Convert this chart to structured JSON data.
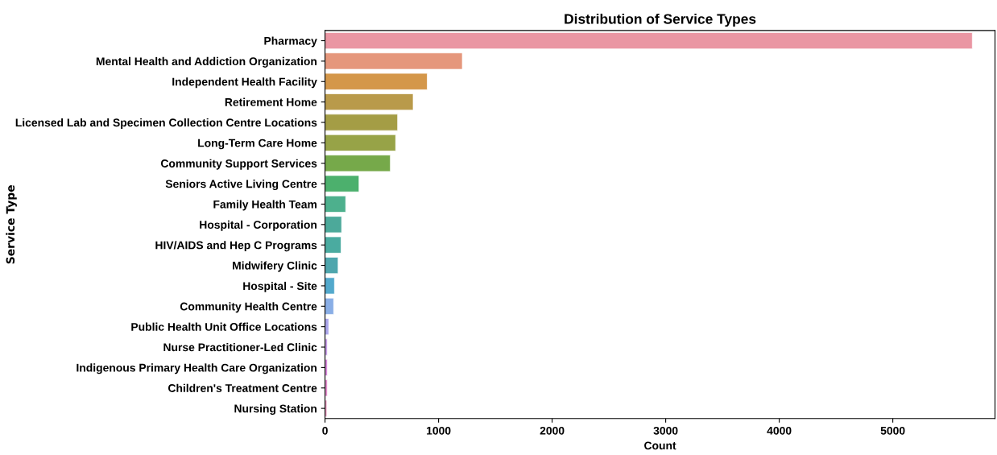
{
  "chart_data": {
    "type": "bar",
    "orientation": "horizontal",
    "title": "Distribution of Service Types",
    "xlabel": "Count",
    "ylabel": "Service Type",
    "categories": [
      "Pharmacy",
      "Mental Health and Addiction Organization",
      "Independent Health Facility",
      "Retirement Home",
      "Licensed Lab and Specimen Collection Centre Locations",
      "Long-Term Care Home",
      "Community Support Services",
      "Seniors Active Living Centre",
      "Family Health Team",
      "Hospital - Corporation",
      "HIV/AIDS and Hep C Programs",
      "Midwifery Clinic",
      "Hospital - Site",
      "Community Health Centre",
      "Public Health Unit Office Locations",
      "Nurse Practitioner-Led Clinic",
      "Indigenous Primary Health Care Organization",
      "Children's Treatment Centre",
      "Nursing Station"
    ],
    "values": [
      5700,
      1209,
      900,
      776,
      639,
      622,
      575,
      299,
      182,
      146,
      141,
      115,
      83,
      76,
      33,
      21,
      21,
      21,
      16
    ],
    "colors": [
      "#ea96a3",
      "#e5977c",
      "#d4974a",
      "#b99a4a",
      "#a49d45",
      "#97a347",
      "#76a94a",
      "#4cb06d",
      "#4db08d",
      "#4ca99a",
      "#4aaba0",
      "#4ea6ad",
      "#52a9cc",
      "#89aee6",
      "#aba6ec",
      "#c79ee8",
      "#d889dd",
      "#e38bcc",
      "#e68db8"
    ],
    "xlim": [
      0,
      5900
    ],
    "xticks": [
      0,
      1000,
      2000,
      3000,
      4000,
      5000
    ],
    "grid": false
  }
}
